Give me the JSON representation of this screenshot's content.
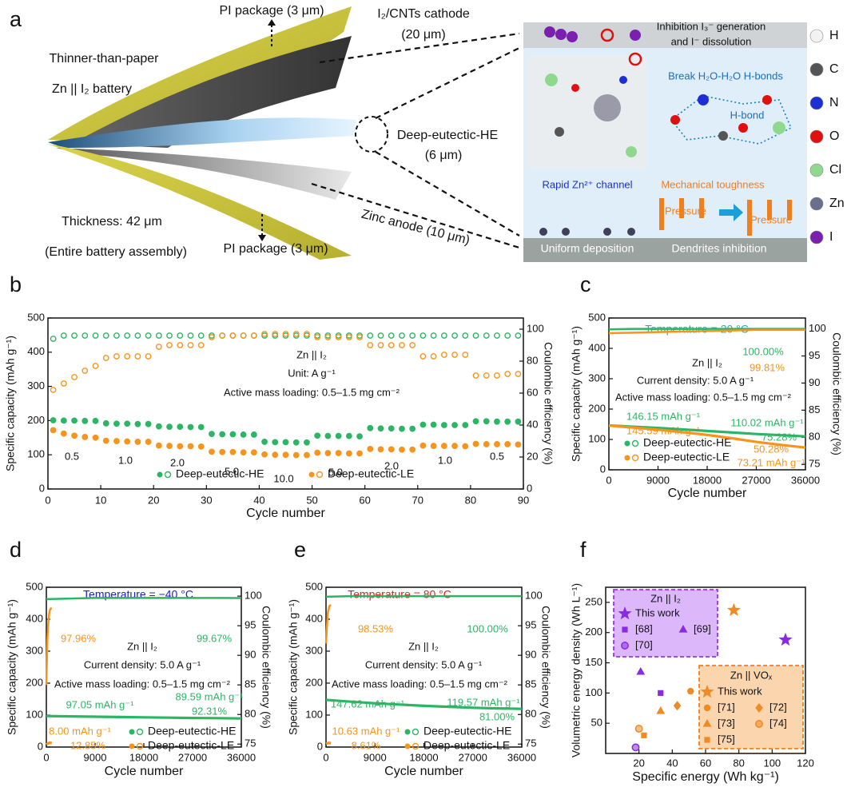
{
  "figure_a": {
    "letter": "a",
    "pi_top": "PI package (3 μm)",
    "pi_bottom": "PI package (3 μm)",
    "thinner": "Thinner-than-paper",
    "battery": "Zn || I₂ battery",
    "thickness": "Thickness: 42 μm",
    "assembly": "(Entire battery assembly)",
    "cathode": "I₂/CNTs cathode",
    "cathode_thick": "(20 μm)",
    "electrolyte": "Deep-eutectic-HE",
    "electrolyte_thick": "(6 μm)",
    "anode": "Zinc anode (10 μm)",
    "inhibition1": "Inhibition I₃⁻ generation",
    "inhibition2": "and I⁻ dissolution",
    "break": "Break H₂O-H₂O  H-bonds",
    "hbond": "H-bond",
    "channel": "Rapid Zn²⁺ channel",
    "toughness": "Mechanical toughness",
    "pressure1": "Pressure",
    "pressure2": "Pressure",
    "uniform": "Uniform deposition",
    "dendrites": "Dendrites inhibition",
    "atoms": [
      {
        "label": "H",
        "color": "#f2f2f2"
      },
      {
        "label": "C",
        "color": "#555555"
      },
      {
        "label": "N",
        "color": "#1c2fd6"
      },
      {
        "label": "O",
        "color": "#e01010"
      },
      {
        "label": "Cl",
        "color": "#8fd98f"
      },
      {
        "label": "Zn",
        "color": "#6a6f8c"
      },
      {
        "label": "I",
        "color": "#7a1fb0"
      }
    ]
  },
  "chart_data": [
    {
      "type": "scatter",
      "panel": "b",
      "xlabel": "Cycle number",
      "ylabel": "Specific capacity (mAh g⁻¹)",
      "y2label": "Coulombic efficiency (%)",
      "xlim": [
        0,
        90
      ],
      "xticks": [
        0,
        10,
        20,
        30,
        40,
        50,
        60,
        70,
        80,
        90
      ],
      "ylim": [
        0,
        500
      ],
      "yticks": [
        0,
        100,
        200,
        300,
        400,
        500
      ],
      "y2lim": [
        0,
        107
      ],
      "y2ticks": [
        0,
        20,
        40,
        60,
        80,
        100
      ],
      "annotations": [
        {
          "text": "Zn || I₂",
          "color": "#111"
        },
        {
          "text": "Unit: A g⁻¹",
          "color": "#111"
        },
        {
          "text": "Active mass loading: 0.5–1.5 mg cm⁻²",
          "color": "#111"
        },
        {
          "text": "0.5",
          "color": "#111"
        },
        {
          "text": "1.0",
          "color": "#111"
        },
        {
          "text": "2.0",
          "color": "#111"
        },
        {
          "text": "5.0",
          "color": "#111"
        },
        {
          "text": "10.0",
          "color": "#111"
        },
        {
          "text": "5.0",
          "color": "#111"
        },
        {
          "text": "2.0",
          "color": "#111"
        },
        {
          "text": "1.0",
          "color": "#111"
        },
        {
          "text": "0.5",
          "color": "#111"
        }
      ],
      "x": [
        1,
        3,
        5,
        7,
        9,
        11,
        13,
        15,
        17,
        19,
        21,
        23,
        25,
        27,
        29,
        31,
        33,
        35,
        37,
        39,
        41,
        43,
        45,
        47,
        49,
        51,
        53,
        55,
        57,
        59,
        61,
        63,
        65,
        67,
        69,
        71,
        73,
        75,
        77,
        79,
        81,
        83,
        85,
        87,
        89
      ],
      "series": [
        {
          "name": "Deep-eutectic-HE",
          "color": "#2db566",
          "marker": "filled",
          "values": [
            201,
            200,
            200,
            199,
            199,
            192,
            191,
            191,
            190,
            190,
            183,
            182,
            182,
            181,
            181,
            161,
            160,
            160,
            159,
            159,
            138,
            137,
            137,
            136,
            136,
            156,
            155,
            155,
            155,
            154,
            178,
            177,
            177,
            176,
            176,
            188,
            188,
            187,
            187,
            187,
            198,
            198,
            197,
            197,
            197
          ]
        },
        {
          "name": "Deep-eutectic-LE",
          "color": "#f7941d",
          "marker": "filled",
          "values": [
            172,
            162,
            156,
            152,
            150,
            141,
            140,
            139,
            138,
            138,
            127,
            126,
            125,
            125,
            124,
            109,
            108,
            108,
            107,
            107,
            101,
            100,
            100,
            99,
            99,
            106,
            105,
            105,
            104,
            104,
            117,
            116,
            116,
            115,
            115,
            127,
            126,
            126,
            126,
            125,
            132,
            131,
            131,
            131,
            130
          ]
        },
        {
          "color": "#2db566",
          "marker": "open",
          "axis": "y2",
          "values": [
            94,
            96,
            96,
            96,
            96,
            96,
            96,
            96,
            96,
            96,
            96,
            96,
            96,
            96,
            96,
            96,
            96,
            96,
            96,
            96,
            96,
            96,
            96,
            96,
            96,
            96,
            96,
            96,
            96,
            96,
            96,
            96,
            96,
            96,
            96,
            96,
            96,
            96,
            96,
            96,
            96,
            96,
            96,
            96,
            96
          ]
        },
        {
          "color": "#f7941d",
          "marker": "open",
          "axis": "y2",
          "values": [
            62,
            66,
            70,
            74,
            77,
            82,
            83,
            83,
            83,
            83,
            89,
            90,
            90,
            90,
            90,
            95,
            96,
            96,
            96,
            96,
            97,
            97,
            97,
            97,
            97,
            95,
            95,
            95,
            95,
            95,
            90,
            90,
            90,
            90,
            90,
            83,
            83,
            84,
            84,
            84,
            71,
            71,
            71,
            72,
            72
          ]
        }
      ]
    },
    {
      "type": "line",
      "panel": "c",
      "title": "Temperature = 20 °C",
      "title_color": "#1ab0c8",
      "xlabel": "Cycle number",
      "ylabel": "Specific capacity (mAh g⁻¹)",
      "y2label": "Coulombic  efficiency (%)",
      "xlim": [
        0,
        36000
      ],
      "xticks": [
        0,
        9000,
        18000,
        27000,
        36000
      ],
      "ylim": [
        0,
        500
      ],
      "yticks": [
        0,
        100,
        200,
        300,
        400,
        500
      ],
      "y2lim": [
        74,
        102
      ],
      "y2ticks": [
        75,
        80,
        85,
        90,
        95,
        100
      ],
      "annotations": [
        {
          "text": "Zn || I₂",
          "color": "#111"
        },
        {
          "text": "Current density: 5.0 A g⁻¹",
          "color": "#111"
        },
        {
          "text": "Active mass loading: 0.5–1.5 mg cm⁻²",
          "color": "#111"
        },
        {
          "text": "100.00%",
          "color": "#2db566"
        },
        {
          "text": "99.81%",
          "color": "#f7941d"
        },
        {
          "text": "146.15 mAh g⁻¹",
          "color": "#2db566"
        },
        {
          "text": "145.59 mAh g⁻¹",
          "color": "#f7941d"
        },
        {
          "text": "110.02 mAh g⁻¹",
          "color": "#2db566"
        },
        {
          "text": "75.28%",
          "color": "#2db566"
        },
        {
          "text": "50.28%",
          "color": "#f7941d"
        },
        {
          "text": "73.21 mAh g⁻¹",
          "color": "#f7941d"
        }
      ],
      "series": [
        {
          "name": "Deep-eutectic-HE",
          "color": "#2db566",
          "x": [
            0,
            4500,
            9000,
            13500,
            18000,
            22500,
            27000,
            31500,
            36000
          ],
          "values": [
            146.15,
            142,
            138,
            133,
            128,
            123,
            118,
            114,
            110.02
          ]
        },
        {
          "name": "Deep-eutectic-LE",
          "color": "#f7941d",
          "x": [
            0,
            4500,
            9000,
            13500,
            18000,
            22500,
            27000,
            31500,
            36000
          ],
          "values": [
            145.59,
            139,
            132,
            124,
            115,
            104,
            92,
            82,
            73.21
          ]
        },
        {
          "color": "#2db566",
          "axis": "y2",
          "x": [
            0,
            4500,
            9000,
            13500,
            18000,
            22500,
            27000,
            31500,
            36000
          ],
          "values": [
            99.9,
            100,
            100,
            100,
            100,
            100,
            100,
            100,
            100
          ]
        },
        {
          "color": "#f7941d",
          "axis": "y2",
          "x": [
            0,
            4500,
            9000,
            13500,
            18000,
            22500,
            27000,
            31500,
            36000
          ],
          "values": [
            99.2,
            99.3,
            99.4,
            99.5,
            99.6,
            99.7,
            99.8,
            99.8,
            99.81
          ]
        }
      ]
    },
    {
      "type": "line",
      "panel": "d",
      "title": "Temperature = −40 °C",
      "title_color": "#2020c8",
      "xlabel": "Cycle number",
      "ylabel": "Specific capacity (mAh g⁻¹)",
      "y2label": "Coulombic efficiency (%)",
      "xlim": [
        0,
        36000
      ],
      "xticks": [
        0,
        9000,
        18000,
        27000,
        36000
      ],
      "ylim": [
        0,
        500
      ],
      "yticks": [
        0,
        100,
        200,
        300,
        400,
        500
      ],
      "y2lim": [
        74.5,
        101.5
      ],
      "y2ticks": [
        75,
        80,
        85,
        90,
        95,
        100
      ],
      "annotations": [
        {
          "text": "Zn || I₂",
          "color": "#111"
        },
        {
          "text": "Current density: 5.0 A g⁻¹",
          "color": "#111"
        },
        {
          "text": "Active mass loading: 0.5–1.5 mg cm⁻²",
          "color": "#111"
        },
        {
          "text": "97.96%",
          "color": "#f7941d"
        },
        {
          "text": "99.67%",
          "color": "#2db566"
        },
        {
          "text": "97.05 mAh g⁻¹",
          "color": "#2db566"
        },
        {
          "text": "89.59 mAh g⁻¹",
          "color": "#2db566"
        },
        {
          "text": "92.31%",
          "color": "#2db566"
        },
        {
          "text": "8.00 mAh g⁻¹",
          "color": "#f7941d"
        },
        {
          "text": "12.85%",
          "color": "#f7941d"
        }
      ],
      "series": [
        {
          "name": "Deep-eutectic-HE",
          "color": "#2db566",
          "x": [
            0,
            4500,
            9000,
            13500,
            18000,
            22500,
            27000,
            31500,
            36000
          ],
          "values": [
            97.05,
            96,
            95,
            94,
            93,
            92,
            91,
            90.5,
            89.59
          ]
        },
        {
          "name": "Deep-eutectic-LE",
          "color": "#f7941d",
          "x": [
            0,
            200,
            400,
            600,
            800,
            1000
          ],
          "values": [
            8,
            10,
            12,
            14,
            13,
            12
          ]
        },
        {
          "color": "#2db566",
          "axis": "y2",
          "x": [
            0,
            4500,
            9000,
            13500,
            18000,
            22500,
            27000,
            31500,
            36000
          ],
          "values": [
            99.5,
            99.6,
            99.7,
            99.7,
            99.7,
            99.7,
            99.7,
            99.7,
            99.67
          ]
        },
        {
          "color": "#f7941d",
          "axis": "y2",
          "x": [
            0,
            200,
            400,
            600,
            800,
            1000
          ],
          "values": [
            85,
            93,
            96,
            97.5,
            97.9,
            97.96
          ]
        }
      ]
    },
    {
      "type": "line",
      "panel": "e",
      "title": "Temperature = 80 °C",
      "title_color": "#e02020",
      "xlabel": "Cycle number",
      "ylabel": "Specific capacity (mAh g⁻¹)",
      "y2label": "Coulombic efficiency (%)",
      "xlim": [
        0,
        36000
      ],
      "xticks": [
        0,
        9000,
        18000,
        27000,
        36000
      ],
      "ylim": [
        0,
        500
      ],
      "yticks": [
        0,
        100,
        200,
        300,
        400,
        500
      ],
      "y2lim": [
        74.5,
        101.5
      ],
      "y2ticks": [
        75,
        80,
        85,
        90,
        95,
        100
      ],
      "annotations": [
        {
          "text": "Zn || I₂",
          "color": "#111"
        },
        {
          "text": "Current density: 5.0 A g⁻¹",
          "color": "#111"
        },
        {
          "text": "Active mass loading: 0.5–1.5 mg cm⁻²",
          "color": "#111"
        },
        {
          "text": "98.53%",
          "color": "#f7941d"
        },
        {
          "text": "100.00%",
          "color": "#2db566"
        },
        {
          "text": "147.62 mAh g⁻¹",
          "color": "#2db566"
        },
        {
          "text": "119.57 mAh g⁻¹",
          "color": "#2db566"
        },
        {
          "text": "81.00%",
          "color": "#2db566"
        },
        {
          "text": "10.63 mAh g⁻¹",
          "color": "#f7941d"
        },
        {
          "text": "8.61%",
          "color": "#f7941d"
        }
      ],
      "series": [
        {
          "name": "Deep-eutectic-HE",
          "color": "#2db566",
          "x": [
            0,
            4500,
            9000,
            13500,
            18000,
            22500,
            27000,
            31500,
            36000
          ],
          "values": [
            147.62,
            142,
            137,
            133,
            129,
            126,
            123,
            121,
            119.57
          ]
        },
        {
          "name": "Deep-eutectic-LE",
          "color": "#f7941d",
          "x": [
            0,
            300,
            600,
            900
          ],
          "values": [
            10.63,
            12,
            13,
            12
          ]
        },
        {
          "color": "#2db566",
          "axis": "y2",
          "x": [
            0,
            4500,
            9000,
            13500,
            18000,
            22500,
            27000,
            31500,
            36000
          ],
          "values": [
            99.9,
            100,
            100,
            100,
            100,
            100,
            100,
            100,
            100
          ]
        },
        {
          "color": "#f7941d",
          "axis": "y2",
          "x": [
            0,
            300,
            600,
            900
          ],
          "values": [
            92,
            97,
            98.3,
            98.53
          ]
        }
      ]
    },
    {
      "type": "ragone",
      "panel": "f",
      "xlabel": "Specific energy (Wh kg⁻¹)",
      "ylabel": "Volumetric energy density (Wh L⁻¹)",
      "xlim": [
        0,
        120
      ],
      "xticks": [
        20,
        40,
        60,
        80,
        100,
        120
      ],
      "ylim": [
        0,
        275
      ],
      "yticks": [
        50,
        100,
        150,
        200,
        250
      ],
      "groups": [
        {
          "title": "Zn || I₂",
          "color": "#9b30ff",
          "fill": "#dcb8fb"
        },
        {
          "title": "Zn || VOₓ",
          "color": "#f07f1e",
          "fill": "#fbd5ad"
        }
      ],
      "series": [
        {
          "name": "This work",
          "group": 0,
          "marker": "star",
          "color": "#8a2be2",
          "x": [
            108
          ],
          "values": [
            188
          ]
        },
        {
          "name": "[68]",
          "group": 0,
          "marker": "square",
          "color": "#8a2be2",
          "x": [
            33
          ],
          "values": [
            100
          ]
        },
        {
          "name": "[69]",
          "group": 0,
          "marker": "triangle",
          "color": "#8a2be2",
          "x": [
            21
          ],
          "values": [
            135
          ]
        },
        {
          "name": "[70]",
          "group": 0,
          "marker": "half",
          "color": "#8a2be2",
          "x": [
            18
          ],
          "values": [
            10
          ]
        },
        {
          "name": "This work",
          "group": 1,
          "marker": "star",
          "color": "#f08a24",
          "x": [
            77
          ],
          "values": [
            237
          ]
        },
        {
          "name": "[71]",
          "group": 1,
          "marker": "circle",
          "color": "#f08a24",
          "x": [
            51
          ],
          "values": [
            103
          ]
        },
        {
          "name": "[72]",
          "group": 1,
          "marker": "diamond",
          "color": "#f08a24",
          "x": [
            43
          ],
          "values": [
            79
          ]
        },
        {
          "name": "[73]",
          "group": 1,
          "marker": "triangle",
          "color": "#f08a24",
          "x": [
            33
          ],
          "values": [
            70
          ]
        },
        {
          "name": "[74]",
          "group": 1,
          "marker": "half",
          "color": "#f08a24",
          "x": [
            20
          ],
          "values": [
            41
          ]
        },
        {
          "name": "[75]",
          "group": 1,
          "marker": "square",
          "color": "#f08a24",
          "x": [
            23
          ],
          "values": [
            30
          ]
        }
      ]
    }
  ]
}
